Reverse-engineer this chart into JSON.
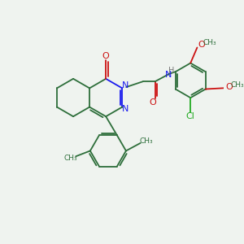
{
  "bg_color": "#eff3ef",
  "bond_color": "#2d6e3a",
  "n_color": "#1a1aee",
  "o_color": "#cc1111",
  "cl_color": "#22aa22",
  "h_color": "#777777",
  "lw": 1.3,
  "xlim": [
    0,
    10
  ],
  "ylim": [
    0,
    10
  ]
}
